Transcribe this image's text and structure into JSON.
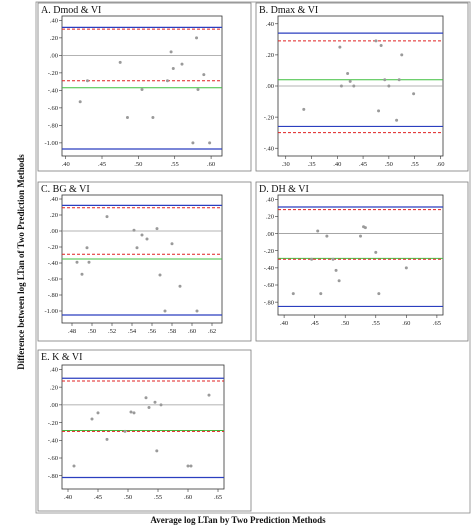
{
  "figure": {
    "ylabel": "Difference between log LTan of Two Prediction Methods",
    "xlabel": "Average log LTan by Two Prediction Methods",
    "colors": {
      "point": "#9a9a9a",
      "zero_line": "#9a9a9a",
      "mean_line": "#3fbf3f",
      "bound_line": "#2b3fbf",
      "ci_line": "#e02020"
    }
  },
  "chart_data": [
    {
      "type": "scatter",
      "title": "A. Dmod & VI",
      "xlim": [
        0.395,
        0.615
      ],
      "ylim": [
        -1.15,
        0.45
      ],
      "x_ticks": [
        0.4,
        0.45,
        0.5,
        0.55,
        0.6
      ],
      "x_tick_labels": [
        ".40",
        ".45",
        ".50",
        ".55",
        ".60"
      ],
      "y_ticks": [
        0.4,
        0.2,
        0.0,
        -0.2,
        -0.4,
        -0.6,
        -0.8,
        -1.0
      ],
      "y_tick_labels": [
        ".40",
        ".20",
        ".00",
        "-.20",
        "-.40",
        "-.60",
        "-.80",
        "-1.00"
      ],
      "lines": {
        "upper": 0.32,
        "upper_ci": 0.3,
        "mean": -0.37,
        "lower_ci": -0.29,
        "lower": -1.07
      },
      "points": [
        {
          "x": 0.42,
          "y": -0.53
        },
        {
          "x": 0.43,
          "y": -0.29
        },
        {
          "x": 0.475,
          "y": -0.08
        },
        {
          "x": 0.485,
          "y": -0.71
        },
        {
          "x": 0.505,
          "y": -0.39
        },
        {
          "x": 0.52,
          "y": -0.71
        },
        {
          "x": 0.54,
          "y": -0.29
        },
        {
          "x": 0.545,
          "y": 0.04
        },
        {
          "x": 0.548,
          "y": -0.15
        },
        {
          "x": 0.56,
          "y": -0.1
        },
        {
          "x": 0.575,
          "y": -1.0
        },
        {
          "x": 0.58,
          "y": 0.2
        },
        {
          "x": 0.582,
          "y": -0.39
        },
        {
          "x": 0.59,
          "y": -0.22
        },
        {
          "x": 0.598,
          "y": -1.0
        }
      ]
    },
    {
      "type": "scatter",
      "title": "B. Dmax & VI",
      "xlim": [
        0.285,
        0.605
      ],
      "ylim": [
        -0.45,
        0.45
      ],
      "x_ticks": [
        0.3,
        0.35,
        0.4,
        0.45,
        0.5,
        0.55,
        0.6
      ],
      "x_tick_labels": [
        ".30",
        ".35",
        ".40",
        ".45",
        ".50",
        ".55",
        ".60"
      ],
      "y_ticks": [
        0.4,
        0.2,
        0.0,
        -0.2,
        -0.4
      ],
      "y_tick_labels": [
        ".40",
        ".20",
        ".00",
        "-.20",
        "-.40"
      ],
      "lines": {
        "upper": 0.34,
        "upper_ci": 0.29,
        "mean": 0.04,
        "lower_ci": -0.3,
        "lower": -0.26
      },
      "points": [
        {
          "x": 0.335,
          "y": -0.15
        },
        {
          "x": 0.405,
          "y": 0.25
        },
        {
          "x": 0.408,
          "y": 0.0
        },
        {
          "x": 0.42,
          "y": 0.08
        },
        {
          "x": 0.425,
          "y": 0.03
        },
        {
          "x": 0.432,
          "y": 0.0
        },
        {
          "x": 0.475,
          "y": 0.29
        },
        {
          "x": 0.48,
          "y": -0.16
        },
        {
          "x": 0.485,
          "y": 0.26
        },
        {
          "x": 0.492,
          "y": 0.04
        },
        {
          "x": 0.5,
          "y": 0.0
        },
        {
          "x": 0.515,
          "y": -0.22
        },
        {
          "x": 0.52,
          "y": 0.04
        },
        {
          "x": 0.525,
          "y": 0.2
        },
        {
          "x": 0.548,
          "y": -0.05
        }
      ]
    },
    {
      "type": "scatter",
      "title": "C. BG & VI",
      "xlim": [
        0.47,
        0.63
      ],
      "ylim": [
        -1.15,
        0.45
      ],
      "x_ticks": [
        0.48,
        0.5,
        0.52,
        0.54,
        0.56,
        0.58,
        0.6,
        0.62
      ],
      "x_tick_labels": [
        ".48",
        ".50",
        ".52",
        ".54",
        ".56",
        ".58",
        ".60",
        ".62"
      ],
      "y_ticks": [
        0.4,
        0.2,
        0.0,
        -0.2,
        -0.4,
        -0.6,
        -0.8,
        -1.0
      ],
      "y_tick_labels": [
        ".40",
        ".20",
        ".00",
        "-.20",
        "-.40",
        "-.60",
        "-.80",
        "-1.00"
      ],
      "lines": {
        "upper": 0.32,
        "upper_ci": 0.29,
        "mean": -0.35,
        "lower_ci": -0.29,
        "lower": -1.05
      },
      "points": [
        {
          "x": 0.485,
          "y": -0.39
        },
        {
          "x": 0.49,
          "y": -0.54
        },
        {
          "x": 0.495,
          "y": -0.21
        },
        {
          "x": 0.497,
          "y": -0.39
        },
        {
          "x": 0.515,
          "y": 0.18
        },
        {
          "x": 0.542,
          "y": 0.01
        },
        {
          "x": 0.545,
          "y": -0.21
        },
        {
          "x": 0.55,
          "y": -0.05
        },
        {
          "x": 0.555,
          "y": -0.1
        },
        {
          "x": 0.565,
          "y": 0.03
        },
        {
          "x": 0.568,
          "y": -0.55
        },
        {
          "x": 0.573,
          "y": -1.0
        },
        {
          "x": 0.58,
          "y": -0.16
        },
        {
          "x": 0.588,
          "y": -0.69
        },
        {
          "x": 0.605,
          "y": -1.0
        }
      ]
    },
    {
      "type": "scatter",
      "title": "D. DH & VI",
      "xlim": [
        0.39,
        0.66
      ],
      "ylim": [
        -0.95,
        0.45
      ],
      "x_ticks": [
        0.4,
        0.45,
        0.5,
        0.55,
        0.6,
        0.65
      ],
      "x_tick_labels": [
        ".40",
        ".45",
        ".50",
        ".55",
        ".60",
        ".65"
      ],
      "y_ticks": [
        0.4,
        0.2,
        0.0,
        -0.2,
        -0.4,
        -0.6,
        -0.8
      ],
      "y_tick_labels": [
        ".40",
        ".20",
        ".00",
        "-.20",
        "-.40",
        "-.60",
        "-.80"
      ],
      "lines": {
        "upper": 0.31,
        "upper_ci": 0.28,
        "mean": -0.29,
        "lower_ci": -0.3,
        "lower": -0.85
      },
      "points": [
        {
          "x": 0.415,
          "y": -0.7
        },
        {
          "x": 0.445,
          "y": -0.3
        },
        {
          "x": 0.455,
          "y": 0.03
        },
        {
          "x": 0.46,
          "y": -0.7
        },
        {
          "x": 0.47,
          "y": -0.03
        },
        {
          "x": 0.48,
          "y": -0.3
        },
        {
          "x": 0.485,
          "y": -0.43
        },
        {
          "x": 0.49,
          "y": -0.55
        },
        {
          "x": 0.525,
          "y": -0.03
        },
        {
          "x": 0.53,
          "y": 0.08
        },
        {
          "x": 0.533,
          "y": 0.07
        },
        {
          "x": 0.55,
          "y": -0.22
        },
        {
          "x": 0.555,
          "y": -0.7
        },
        {
          "x": 0.6,
          "y": -0.4
        }
      ]
    },
    {
      "type": "scatter",
      "title": "E. K & VI",
      "xlim": [
        0.39,
        0.66
      ],
      "ylim": [
        -0.95,
        0.45
      ],
      "x_ticks": [
        0.4,
        0.45,
        0.5,
        0.55,
        0.6,
        0.65
      ],
      "x_tick_labels": [
        ".40",
        ".45",
        ".50",
        ".55",
        ".60",
        ".65"
      ],
      "y_ticks": [
        0.4,
        0.2,
        0.0,
        -0.2,
        -0.4,
        -0.6,
        -0.8
      ],
      "y_tick_labels": [
        ".40",
        ".20",
        ".00",
        "-.20",
        "-.40",
        "-.60",
        "-.80"
      ],
      "lines": {
        "upper": 0.3,
        "upper_ci": 0.27,
        "mean": -0.29,
        "lower_ci": -0.3,
        "lower": -0.82
      },
      "points": [
        {
          "x": 0.41,
          "y": -0.69
        },
        {
          "x": 0.44,
          "y": -0.16
        },
        {
          "x": 0.45,
          "y": -0.09
        },
        {
          "x": 0.465,
          "y": -0.39
        },
        {
          "x": 0.495,
          "y": -0.3
        },
        {
          "x": 0.505,
          "y": -0.08
        },
        {
          "x": 0.51,
          "y": -0.09
        },
        {
          "x": 0.53,
          "y": 0.08
        },
        {
          "x": 0.535,
          "y": -0.03
        },
        {
          "x": 0.545,
          "y": 0.03
        },
        {
          "x": 0.548,
          "y": -0.52
        },
        {
          "x": 0.555,
          "y": 0.0
        },
        {
          "x": 0.6,
          "y": -0.69
        },
        {
          "x": 0.605,
          "y": -0.69
        },
        {
          "x": 0.635,
          "y": 0.11
        }
      ]
    }
  ]
}
